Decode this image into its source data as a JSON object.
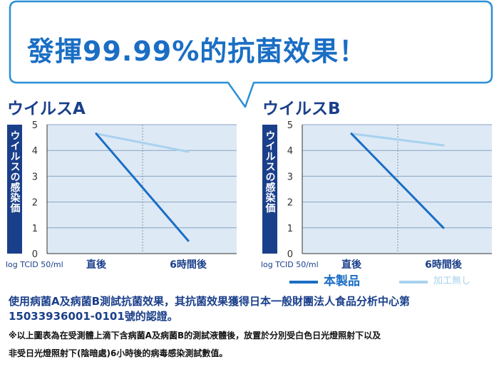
{
  "headline": "發揮99.99%的抗菌效果！",
  "colors": {
    "product": "#1a6ec4",
    "processed_none": "#a8d2ee",
    "plot_bg": "#dde9f5",
    "bar": "#1a3f8a",
    "title": "#1a3f8a"
  },
  "chart_data": [
    {
      "type": "line",
      "title": "ウイルスA",
      "ylabel": "ウイルスの感染価",
      "xlabel": "log TCID 50/ml",
      "categories": [
        "直後",
        "6時間後"
      ],
      "ylim": [
        0,
        5
      ],
      "yticks": [
        "0",
        "1",
        "2",
        "3",
        "4",
        "5"
      ],
      "series": [
        {
          "name": "本製品",
          "color": "#1a6ec4",
          "values": [
            4.65,
            0.5
          ]
        },
        {
          "name": "加工無し",
          "color": "#a8d2ee",
          "values": [
            4.65,
            3.95
          ]
        }
      ],
      "grid": true,
      "legend": "bottom"
    },
    {
      "type": "line",
      "title": "ウイルスB",
      "ylabel": "ウイルスの感染価",
      "xlabel": "log TCID 50/ml",
      "categories": [
        "直後",
        "6時間後"
      ],
      "ylim": [
        0,
        5
      ],
      "yticks": [
        "0",
        "1",
        "2",
        "3",
        "4",
        "5"
      ],
      "series": [
        {
          "name": "本製品",
          "color": "#1a6ec4",
          "values": [
            4.65,
            1.0
          ]
        },
        {
          "name": "加工無し",
          "color": "#a8d2ee",
          "values": [
            4.65,
            4.2
          ]
        }
      ],
      "grid": true,
      "legend": "bottom"
    }
  ],
  "legend": {
    "items": [
      {
        "label": "本製品",
        "color": "#1a6ec4"
      },
      {
        "label": "加工無し",
        "color": "#a8d2ee"
      }
    ]
  },
  "footer": {
    "main": "使用病菌A及病菌B測試抗菌效果，其抗菌效果獲得日本一般財團法人食品分析中心第15033936001-0101號的認證。",
    "note_1": "※以上圖表為在受測體上滴下含病菌A及病菌B的測試液體後，放置於分別受白色日光燈照射下以及",
    "note_2": "非受日光燈照射下(陰暗處)6小時後的病毒感染測試數值。"
  }
}
